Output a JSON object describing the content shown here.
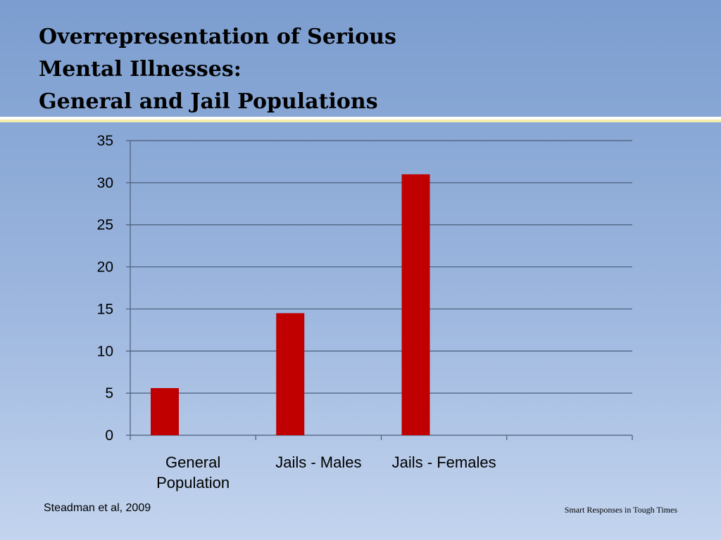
{
  "slide": {
    "title_lines": [
      "Overrepresentation of Serious",
      "Mental Illnesses:",
      "General and Jail Populations"
    ],
    "citation": "Steadman et al, 2009",
    "footer": "Smart Responses in Tough Times"
  },
  "colors": {
    "bar": "#c00000",
    "gridline": "#4a5d7a",
    "accent_rule": "#f4eeaa"
  },
  "chart_data": {
    "type": "bar",
    "categories": [
      [
        "General",
        "Population"
      ],
      [
        "Jails - Males"
      ],
      [
        "Jails - Females"
      ],
      [
        ""
      ]
    ],
    "series": [
      {
        "values": [
          5.6,
          14.5,
          31,
          null
        ]
      }
    ],
    "yticks": [
      0,
      5,
      10,
      15,
      20,
      25,
      30,
      35
    ],
    "ylim": [
      0,
      35
    ],
    "grid": true,
    "legend": "none"
  }
}
